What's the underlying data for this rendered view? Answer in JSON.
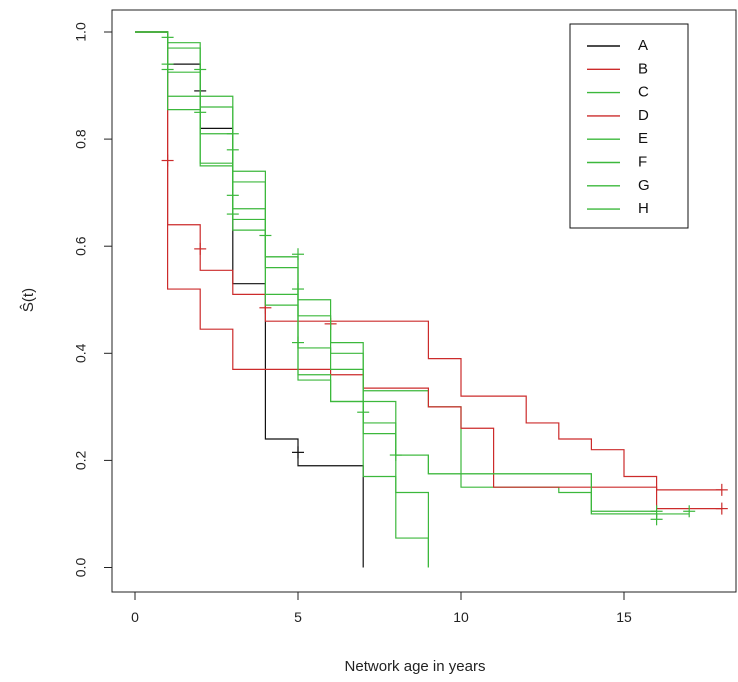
{
  "chart_data": {
    "type": "line",
    "subtype": "kaplan-meier-step",
    "title": "",
    "xlabel": "Network age in years",
    "ylabel": "Ŝ(t)",
    "xlim": [
      0,
      18
    ],
    "ylim": [
      0,
      1
    ],
    "xticks": [
      0,
      5,
      10,
      15
    ],
    "yticks": [
      0.0,
      0.2,
      0.4,
      0.6,
      0.8,
      1.0
    ],
    "ytick_labels": [
      "0.0",
      "0.2",
      "0.4",
      "0.6",
      "0.8",
      "1.0"
    ],
    "grid": false,
    "legend_position": "top-right",
    "colors": {
      "A": "#111111",
      "red": "#cc2b2b",
      "green": "#3cb83c"
    },
    "series": [
      {
        "name": "A",
        "color": "#111111",
        "steps": [
          [
            0,
            1.0
          ],
          [
            1,
            0.94
          ],
          [
            2,
            0.82
          ],
          [
            3,
            0.53
          ],
          [
            4,
            0.24
          ],
          [
            5,
            0.19
          ],
          [
            7,
            0.0
          ]
        ],
        "end": 7,
        "censored": [
          [
            2,
            0.89
          ],
          [
            5,
            0.215
          ]
        ]
      },
      {
        "name": "B",
        "color": "#cc2b2b",
        "steps": [
          [
            0,
            1.0
          ],
          [
            1,
            0.64
          ],
          [
            2,
            0.555
          ],
          [
            3,
            0.51
          ],
          [
            4,
            0.46
          ],
          [
            9,
            0.39
          ],
          [
            10,
            0.32
          ],
          [
            12,
            0.27
          ],
          [
            13,
            0.24
          ],
          [
            14,
            0.22
          ],
          [
            15,
            0.17
          ],
          [
            16,
            0.145
          ]
        ],
        "end": 18,
        "censored": [
          [
            1,
            0.76
          ],
          [
            2,
            0.595
          ],
          [
            4,
            0.485
          ],
          [
            18,
            0.145
          ]
        ]
      },
      {
        "name": "C",
        "color": "#3cb83c",
        "steps": [
          [
            0,
            1.0
          ],
          [
            1,
            0.97
          ],
          [
            2,
            0.86
          ],
          [
            3,
            0.72
          ],
          [
            4,
            0.58
          ],
          [
            5,
            0.47
          ],
          [
            6,
            0.4
          ],
          [
            7,
            0.33
          ],
          [
            9,
            0.3
          ],
          [
            10,
            0.15
          ],
          [
            13,
            0.14
          ],
          [
            14,
            0.1
          ],
          [
            16,
            0.09
          ]
        ],
        "end": 16,
        "censored": [
          [
            1,
            0.99
          ],
          [
            2,
            0.93
          ],
          [
            3,
            0.81
          ],
          [
            16,
            0.09
          ]
        ]
      },
      {
        "name": "D",
        "color": "#cc2b2b",
        "steps": [
          [
            0,
            1.0
          ],
          [
            1,
            0.52
          ],
          [
            2,
            0.445
          ],
          [
            3,
            0.37
          ],
          [
            6,
            0.36
          ],
          [
            7,
            0.335
          ],
          [
            9,
            0.3
          ],
          [
            10,
            0.26
          ],
          [
            11,
            0.15
          ],
          [
            16,
            0.11
          ]
        ],
        "end": 18,
        "censored": [
          [
            6,
            0.455
          ],
          [
            18,
            0.11
          ]
        ]
      },
      {
        "name": "E",
        "color": "#3cb83c",
        "steps": [
          [
            0,
            1.0
          ],
          [
            1,
            0.98
          ],
          [
            2,
            0.88
          ],
          [
            3,
            0.74
          ],
          [
            4,
            0.56
          ],
          [
            5,
            0.5
          ],
          [
            6,
            0.42
          ],
          [
            7,
            0.27
          ],
          [
            8,
            0.21
          ],
          [
            9,
            0.175
          ],
          [
            13,
            0.175
          ],
          [
            14,
            0.105
          ],
          [
            16,
            0.105
          ]
        ],
        "end": 16,
        "censored": [
          [
            1,
            0.94
          ],
          [
            2,
            0.85
          ],
          [
            3,
            0.78
          ],
          [
            4,
            0.62
          ],
          [
            16,
            0.105
          ]
        ]
      },
      {
        "name": "F",
        "color": "#3cb83c",
        "steps": [
          [
            0,
            1.0
          ],
          [
            1,
            0.88
          ],
          [
            2,
            0.75
          ],
          [
            3,
            0.67
          ],
          [
            4,
            0.51
          ],
          [
            5,
            0.36
          ],
          [
            6,
            0.31
          ],
          [
            7,
            0.25
          ],
          [
            8,
            0.14
          ],
          [
            9,
            0.0
          ]
        ],
        "end": 9,
        "censored": [
          [
            3,
            0.66
          ],
          [
            5,
            0.52
          ]
        ]
      },
      {
        "name": "G",
        "color": "#3cb83c",
        "steps": [
          [
            0,
            1.0
          ],
          [
            1,
            0.925
          ],
          [
            2,
            0.81
          ],
          [
            3,
            0.65
          ],
          [
            4,
            0.49
          ],
          [
            5,
            0.35
          ],
          [
            6,
            0.31
          ],
          [
            7,
            0.17
          ],
          [
            8,
            0.055
          ],
          [
            9,
            0.0
          ]
        ],
        "end": 9,
        "censored": [
          [
            1,
            0.93
          ],
          [
            3,
            0.695
          ],
          [
            5,
            0.42
          ],
          [
            7,
            0.29
          ]
        ]
      },
      {
        "name": "H",
        "color": "#3cb83c",
        "steps": [
          [
            0,
            1.0
          ],
          [
            1,
            0.855
          ],
          [
            2,
            0.755
          ],
          [
            3,
            0.63
          ],
          [
            4,
            0.58
          ],
          [
            5,
            0.41
          ],
          [
            6,
            0.37
          ],
          [
            7,
            0.31
          ],
          [
            8,
            0.21
          ],
          [
            9,
            0.175
          ],
          [
            12,
            0.175
          ],
          [
            14,
            0.1
          ],
          [
            17,
            0.1
          ]
        ],
        "end": 17,
        "censored": [
          [
            5,
            0.585
          ],
          [
            8,
            0.21
          ],
          [
            17,
            0.105
          ]
        ]
      }
    ]
  }
}
